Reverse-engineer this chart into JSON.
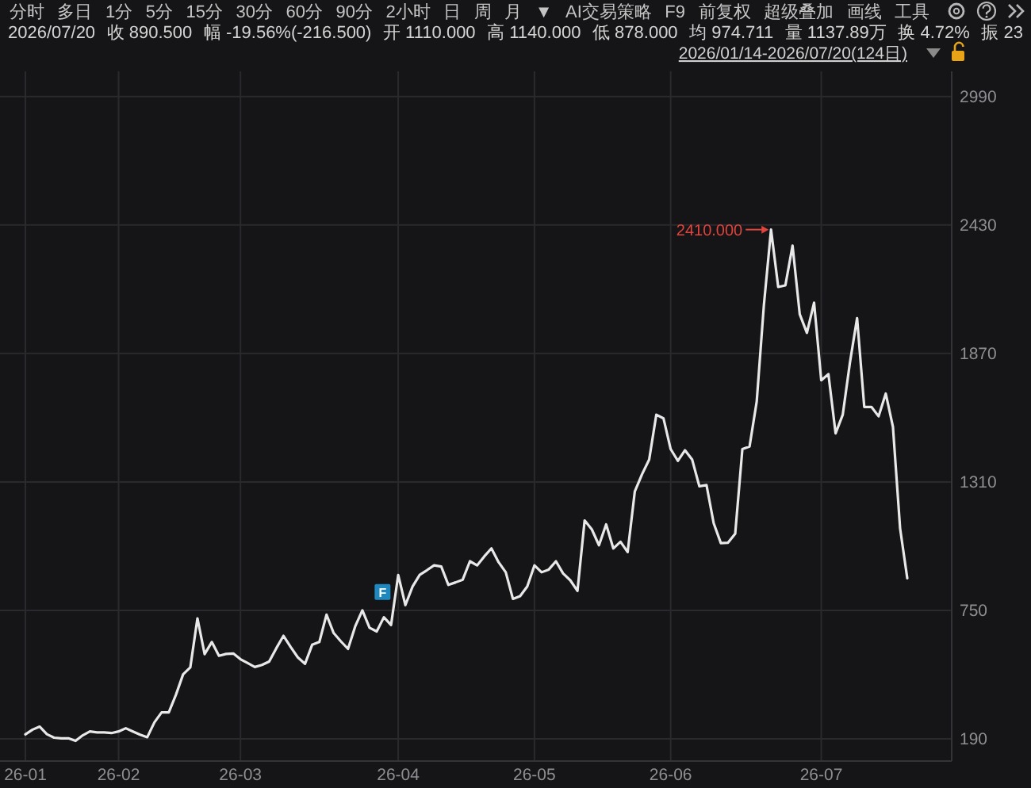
{
  "chart_data": {
    "type": "line",
    "subtitle": "2026/07/20  收 890.500  幅 -19.56%(-216.500)  开 1110.000  高 1140.000  低 878.000  均 974.711  量 1137.89万  换 4.72%  振 23",
    "categories": [
      "26-01",
      null,
      null,
      null,
      null,
      null,
      null,
      null,
      null,
      null,
      null,
      null,
      null,
      "26-02",
      null,
      null,
      null,
      null,
      null,
      null,
      null,
      null,
      null,
      null,
      null,
      null,
      null,
      null,
      null,
      null,
      "26-03",
      null,
      null,
      null,
      null,
      null,
      null,
      null,
      null,
      null,
      null,
      null,
      null,
      null,
      null,
      null,
      null,
      null,
      null,
      null,
      null,
      null,
      "26-04",
      null,
      null,
      null,
      null,
      null,
      null,
      null,
      null,
      null,
      null,
      null,
      null,
      null,
      null,
      null,
      null,
      null,
      null,
      "26-05",
      null,
      null,
      null,
      null,
      null,
      null,
      null,
      null,
      null,
      null,
      null,
      null,
      null,
      null,
      null,
      null,
      null,
      null,
      "26-06",
      null,
      null,
      null,
      null,
      null,
      null,
      null,
      null,
      null,
      null,
      null,
      null,
      null,
      null,
      null,
      null,
      null,
      null,
      null,
      null,
      "26-07",
      null,
      null,
      null,
      null,
      null,
      null,
      null,
      null,
      null,
      null,
      null,
      null
    ],
    "values": [
      209,
      230,
      243,
      210,
      195,
      192,
      192,
      181,
      205,
      222,
      218,
      218,
      215,
      222,
      236,
      222,
      208,
      197,
      262,
      305,
      305,
      382,
      471,
      501,
      715,
      559,
      612,
      552,
      560,
      562,
      537,
      520,
      503,
      512,
      527,
      585,
      639,
      590,
      545,
      517,
      600,
      612,
      731,
      651,
      615,
      582,
      680,
      750,
      674,
      658,
      720,
      686,
      904,
      773,
      854,
      905,
      925,
      946,
      941,
      861,
      872,
      884,
      964,
      946,
      985,
      1020,
      960,
      916,
      800,
      812,
      854,
      946,
      916,
      928,
      964,
      911,
      881,
      835,
      1142,
      1103,
      1034,
      1125,
      1020,
      1049,
      1004,
      1269,
      1343,
      1407,
      1603,
      1587,
      1453,
      1402,
      1448,
      1407,
      1291,
      1296,
      1130,
      1043,
      1045,
      1084,
      1453,
      1464,
      1660,
      2080,
      2410,
      2160,
      2167,
      2340,
      2041,
      1960,
      2091,
      1753,
      1780,
      1522,
      1603,
      1830,
      2024,
      1637,
      1637,
      1596,
      1695,
      1550,
      1107,
      890
    ],
    "color": "#e8e8e8",
    "ylim": [
      93,
      3100
    ],
    "yticks": [
      190,
      750,
      1310,
      1870,
      2430,
      2990
    ],
    "grid": true,
    "annotations": [
      "分时 多日 1分 5分 15分 30分 60分 90分 2小时 日 周 月 ▼ AI交易策略 F9 前复权 超级叠加 画线 工具",
      "2026/01/14-2026/07/20(124日)",
      "F",
      "2410.000"
    ]
  }
}
